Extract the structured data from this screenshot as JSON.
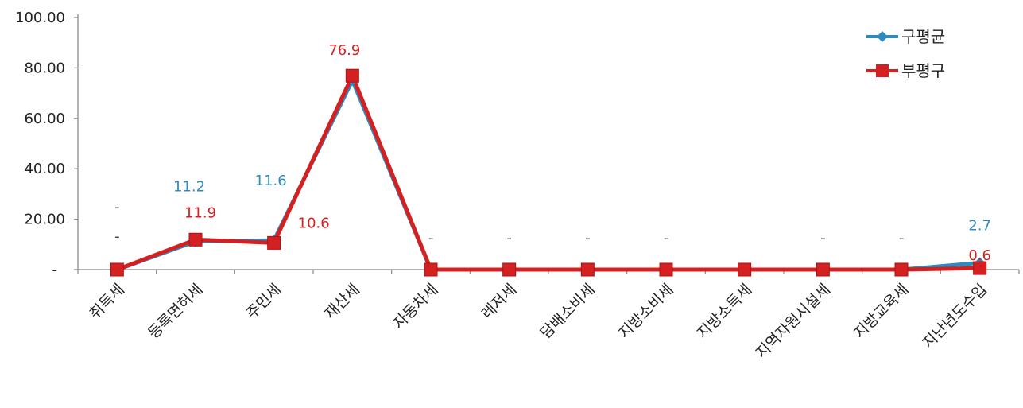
{
  "chart_data": {
    "type": "line",
    "categories": [
      "취득세",
      "등록면허세",
      "주민세",
      "재산세",
      "자동차세",
      "레저세",
      "담배소비세",
      "지방소비세",
      "지방소득세",
      "지역자원시설세",
      "지방교육세",
      "지난년도수입"
    ],
    "series": [
      {
        "name": "구평균",
        "color": "#2e8bc0",
        "marker": "diamond",
        "values": [
          0,
          11.2,
          11.6,
          75.1,
          0,
          0,
          0,
          0,
          0,
          0,
          0,
          2.7
        ],
        "labels": [
          "-",
          "11.2",
          "11.6",
          "75.1",
          "",
          "",
          "",
          "",
          "",
          "",
          "",
          "2.7"
        ]
      },
      {
        "name": "부평구",
        "color": "#d42020",
        "marker": "square",
        "values": [
          0,
          11.9,
          10.6,
          76.9,
          0,
          0,
          0,
          0,
          0,
          0,
          0,
          0.6
        ],
        "labels": [
          "-",
          "11.9",
          "10.6",
          "76.9",
          "-",
          "-",
          "-",
          "-",
          "",
          "-",
          "-",
          "0.6"
        ]
      }
    ],
    "y_ticks": [
      "-",
      "20.00",
      "40.00",
      "60.00",
      "80.00",
      "100.00"
    ],
    "ylim": [
      0,
      100
    ],
    "legend_position": "top-right",
    "grid": false
  }
}
